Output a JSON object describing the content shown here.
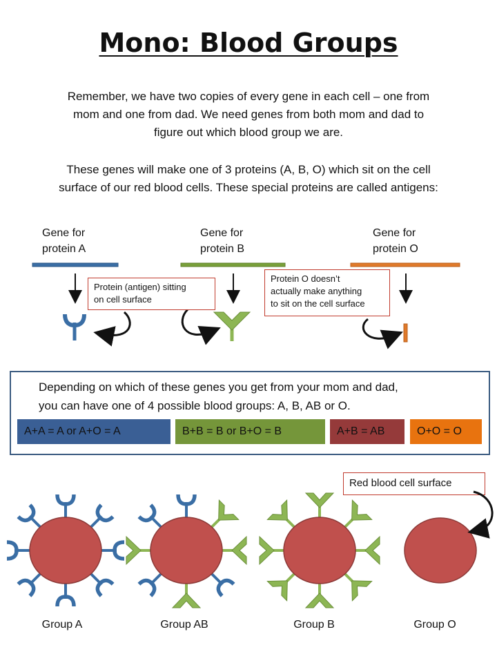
{
  "title": "Mono: Blood Groups",
  "intro": {
    "line1": "Remember, we have two copies of every gene in each cell – one from",
    "line2": "mom and one from dad. We need genes from both mom and dad to",
    "line3": "figure out which blood group we are.",
    "line4": "These genes will make one of 3 proteins (A, B, O) which sit on the cell",
    "line5": "surface of our red blood cells. These special proteins are called antigens:"
  },
  "genes": [
    {
      "line1": "Gene for",
      "line2": "protein A",
      "color": "#3a6ea5"
    },
    {
      "line1": "Gene for",
      "line2": "protein B",
      "color": "#79a03a"
    },
    {
      "line1": "Gene for",
      "line2": "protein O",
      "color": "#e07a2a"
    }
  ],
  "callouts": {
    "antigen": {
      "line1": "Protein (antigen) sitting",
      "line2": "on cell surface"
    },
    "protein_o": {
      "line1": "Protein O doesn’t",
      "line2": "actually make anything",
      "line3": "to sit on the cell surface"
    },
    "surface": "Red blood cell surface"
  },
  "groups_box": {
    "line1": "Depending on which of these genes you get from your mom and dad,",
    "line2": "you can have one of 4 possible blood groups: A, B, AB or O.",
    "combos": [
      {
        "label": "A+A = A  or  A+O = A",
        "color": "#3a5f95"
      },
      {
        "label": "B+B = B  or  B+O = B",
        "color": "#75963a"
      },
      {
        "label": "A+B = AB",
        "color": "#953a3a"
      },
      {
        "label": "O+O = O",
        "color": "#e8730f"
      }
    ]
  },
  "cells": [
    {
      "label": "Group A"
    },
    {
      "label": "Group AB"
    },
    {
      "label": "Group B"
    },
    {
      "label": "Group O"
    }
  ],
  "colors": {
    "cell_fill": "#c0504d",
    "cell_stroke": "#8c3a38",
    "antigen_a": "#3a6ea5",
    "antigen_b": "#8db654",
    "antigen_b_stroke": "#6b8f3a",
    "antigen_o": "#e07a2a"
  }
}
